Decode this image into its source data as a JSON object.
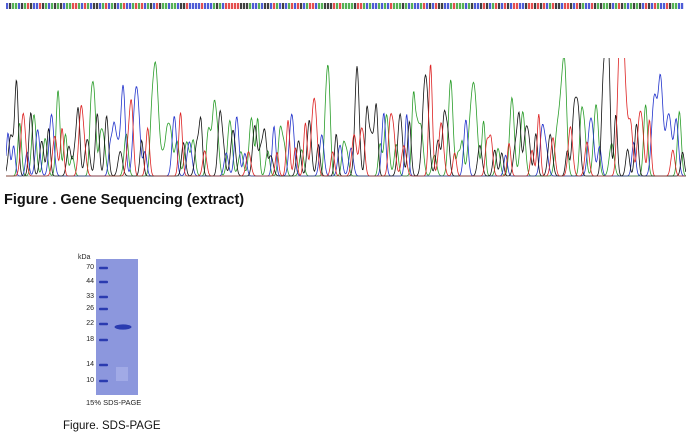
{
  "figure1": {
    "caption": "Figure . Gene Sequencing (extract)",
    "trace_colors": {
      "A": "#2a9d2a",
      "C": "#2233cc",
      "G": "#111111",
      "T": "#dd2222"
    }
  },
  "figure2": {
    "gel_unit": "kDa",
    "markers": [
      "70",
      "44",
      "33",
      "26",
      "22",
      "18",
      "14",
      "10"
    ],
    "gel_caption": "15% SDS-PAGE",
    "caption": "Figure. SDS-PAGE",
    "gel_color": "#8c97dd",
    "band_color": "#2a3bb0"
  }
}
